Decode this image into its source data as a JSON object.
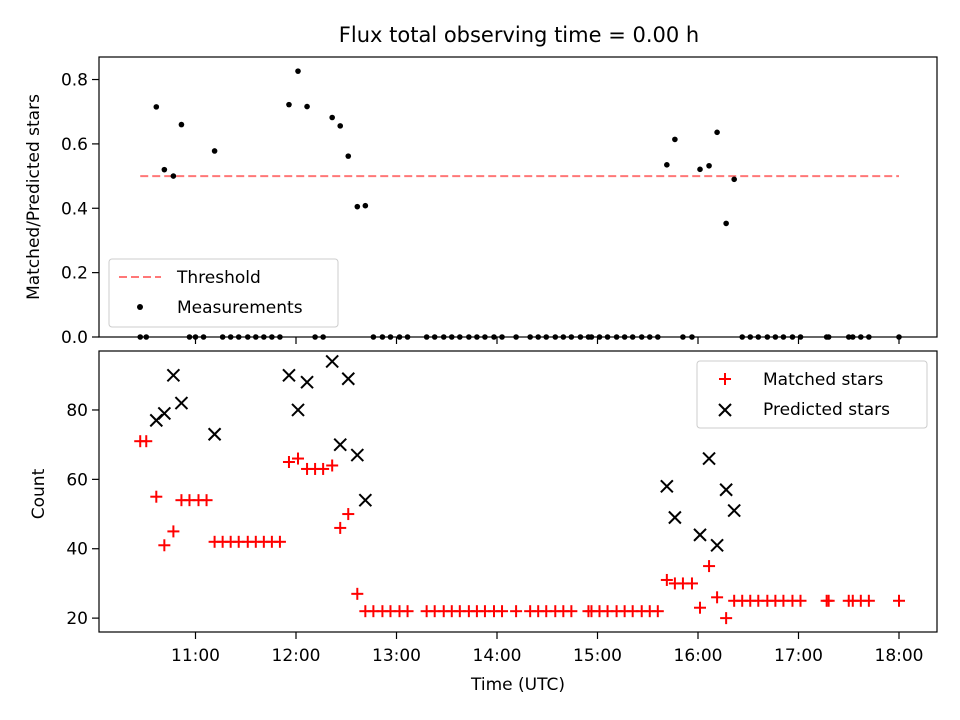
{
  "chart_data": [
    {
      "type": "scatter",
      "title": "Flux total observing time = 0.00 h",
      "xlabel": "",
      "ylabel": "Matched/Predicted stars",
      "ylim": [
        0,
        0.87
      ],
      "yticks": [
        0.0,
        0.2,
        0.4,
        0.6,
        0.8
      ],
      "ytick_labels": [
        "0.0",
        "0.2",
        "0.4",
        "0.6",
        "0.8"
      ],
      "xticks": [
        11.0,
        12.0,
        13.0,
        14.0,
        15.0,
        16.0,
        17.0,
        18.0
      ],
      "legend_position": "lower-left",
      "threshold": {
        "name": "Threshold",
        "y": 0.5,
        "x": [
          10.45,
          18.0
        ],
        "color": "#ff7777",
        "style": "dashed"
      },
      "series": [
        {
          "name": "Measurements",
          "color": "#000000",
          "marker": "dot",
          "points": [
            [
              10.45,
              0
            ],
            [
              10.51,
              0
            ],
            [
              10.61,
              0.715
            ],
            [
              10.69,
              0.52
            ],
            [
              10.78,
              0.5
            ],
            [
              10.86,
              0.66
            ],
            [
              10.94,
              0
            ],
            [
              11.0,
              0
            ],
            [
              11.08,
              0
            ],
            [
              11.19,
              0.578
            ],
            [
              11.27,
              0
            ],
            [
              11.35,
              0
            ],
            [
              11.43,
              0
            ],
            [
              11.52,
              0
            ],
            [
              11.6,
              0
            ],
            [
              11.68,
              0
            ],
            [
              11.76,
              0
            ],
            [
              11.84,
              0
            ],
            [
              11.93,
              0.722
            ],
            [
              12.02,
              0.826
            ],
            [
              12.11,
              0.716
            ],
            [
              12.19,
              0
            ],
            [
              12.27,
              0
            ],
            [
              12.36,
              0.682
            ],
            [
              12.44,
              0.656
            ],
            [
              12.52,
              0.562
            ],
            [
              12.61,
              0.405
            ],
            [
              12.69,
              0.408
            ],
            [
              12.77,
              0
            ],
            [
              12.86,
              0
            ],
            [
              12.94,
              0
            ],
            [
              13.03,
              0
            ],
            [
              13.11,
              0
            ],
            [
              13.3,
              0
            ],
            [
              13.38,
              0
            ],
            [
              13.47,
              0
            ],
            [
              13.55,
              0
            ],
            [
              13.63,
              0
            ],
            [
              13.72,
              0
            ],
            [
              13.8,
              0
            ],
            [
              13.88,
              0
            ],
            [
              13.97,
              0
            ],
            [
              14.05,
              0
            ],
            [
              14.19,
              0
            ],
            [
              14.33,
              0
            ],
            [
              14.41,
              0
            ],
            [
              14.49,
              0
            ],
            [
              14.58,
              0
            ],
            [
              14.66,
              0
            ],
            [
              14.74,
              0
            ],
            [
              14.83,
              0
            ],
            [
              14.91,
              0
            ],
            [
              14.94,
              0
            ],
            [
              15.02,
              0
            ],
            [
              15.1,
              0
            ],
            [
              15.19,
              0
            ],
            [
              15.27,
              0
            ],
            [
              15.35,
              0
            ],
            [
              15.44,
              0
            ],
            [
              15.52,
              0
            ],
            [
              15.6,
              0
            ],
            [
              15.69,
              0.535
            ],
            [
              15.77,
              0.614
            ],
            [
              15.85,
              0
            ],
            [
              15.94,
              0
            ],
            [
              16.02,
              0.521
            ],
            [
              16.11,
              0.532
            ],
            [
              16.19,
              0.636
            ],
            [
              16.28,
              0.353
            ],
            [
              16.36,
              0.49
            ],
            [
              16.44,
              0
            ],
            [
              16.52,
              0
            ],
            [
              16.6,
              0
            ],
            [
              16.69,
              0
            ],
            [
              16.77,
              0
            ],
            [
              16.85,
              0
            ],
            [
              16.94,
              0
            ],
            [
              17.02,
              0
            ],
            [
              17.28,
              0
            ],
            [
              17.3,
              0
            ],
            [
              17.5,
              0
            ],
            [
              17.54,
              0
            ],
            [
              17.62,
              0
            ],
            [
              17.7,
              0
            ],
            [
              18.0,
              0
            ]
          ]
        }
      ]
    },
    {
      "type": "scatter",
      "title": "",
      "xlabel": "Time (UTC)",
      "ylabel": "Count",
      "ylim": [
        16,
        97
      ],
      "yticks": [
        20,
        40,
        60,
        80
      ],
      "ytick_labels": [
        "20",
        "40",
        "60",
        "80"
      ],
      "xticks": [
        11.0,
        12.0,
        13.0,
        14.0,
        15.0,
        16.0,
        17.0,
        18.0
      ],
      "xtick_labels": [
        "11:00",
        "12:00",
        "13:00",
        "14:00",
        "15:00",
        "16:00",
        "17:00",
        "18:00"
      ],
      "legend_position": "upper-right",
      "series": [
        {
          "name": "Matched stars",
          "color": "#ff0000",
          "marker": "plus",
          "points": [
            [
              10.45,
              71
            ],
            [
              10.51,
              71
            ],
            [
              10.61,
              55
            ],
            [
              10.69,
              41
            ],
            [
              10.78,
              45
            ],
            [
              10.86,
              54
            ],
            [
              10.94,
              54
            ],
            [
              11.03,
              54
            ],
            [
              11.11,
              54
            ],
            [
              11.19,
              42
            ],
            [
              11.27,
              42
            ],
            [
              11.35,
              42
            ],
            [
              11.43,
              42
            ],
            [
              11.52,
              42
            ],
            [
              11.6,
              42
            ],
            [
              11.68,
              42
            ],
            [
              11.76,
              42
            ],
            [
              11.84,
              42
            ],
            [
              11.93,
              65
            ],
            [
              12.02,
              66
            ],
            [
              12.11,
              63
            ],
            [
              12.19,
              63
            ],
            [
              12.27,
              63
            ],
            [
              12.36,
              64
            ],
            [
              12.44,
              46
            ],
            [
              12.52,
              50
            ],
            [
              12.61,
              27
            ],
            [
              12.69,
              22
            ],
            [
              12.77,
              22
            ],
            [
              12.86,
              22
            ],
            [
              12.94,
              22
            ],
            [
              13.03,
              22
            ],
            [
              13.11,
              22
            ],
            [
              13.3,
              22
            ],
            [
              13.38,
              22
            ],
            [
              13.47,
              22
            ],
            [
              13.55,
              22
            ],
            [
              13.63,
              22
            ],
            [
              13.72,
              22
            ],
            [
              13.8,
              22
            ],
            [
              13.88,
              22
            ],
            [
              13.97,
              22
            ],
            [
              14.05,
              22
            ],
            [
              14.19,
              22
            ],
            [
              14.33,
              22
            ],
            [
              14.41,
              22
            ],
            [
              14.49,
              22
            ],
            [
              14.58,
              22
            ],
            [
              14.66,
              22
            ],
            [
              14.74,
              22
            ],
            [
              14.91,
              22
            ],
            [
              14.94,
              22
            ],
            [
              15.02,
              22
            ],
            [
              15.1,
              22
            ],
            [
              15.19,
              22
            ],
            [
              15.27,
              22
            ],
            [
              15.35,
              22
            ],
            [
              15.44,
              22
            ],
            [
              15.52,
              22
            ],
            [
              15.6,
              22
            ],
            [
              15.69,
              31
            ],
            [
              15.77,
              30
            ],
            [
              15.85,
              30
            ],
            [
              15.94,
              30
            ],
            [
              16.02,
              23
            ],
            [
              16.11,
              35
            ],
            [
              16.19,
              26
            ],
            [
              16.28,
              20
            ],
            [
              16.36,
              25
            ],
            [
              16.44,
              25
            ],
            [
              16.52,
              25
            ],
            [
              16.6,
              25
            ],
            [
              16.69,
              25
            ],
            [
              16.77,
              25
            ],
            [
              16.85,
              25
            ],
            [
              16.94,
              25
            ],
            [
              17.02,
              25
            ],
            [
              17.28,
              25
            ],
            [
              17.3,
              25
            ],
            [
              17.5,
              25
            ],
            [
              17.54,
              25
            ],
            [
              17.62,
              25
            ],
            [
              17.7,
              25
            ],
            [
              18.0,
              25
            ]
          ]
        },
        {
          "name": "Predicted stars",
          "color": "#000000",
          "marker": "x",
          "points": [
            [
              10.61,
              77
            ],
            [
              10.69,
              79
            ],
            [
              10.78,
              90
            ],
            [
              10.86,
              82
            ],
            [
              11.19,
              73
            ],
            [
              11.93,
              90
            ],
            [
              12.02,
              80
            ],
            [
              12.11,
              88
            ],
            [
              12.36,
              94
            ],
            [
              12.44,
              70
            ],
            [
              12.52,
              89
            ],
            [
              12.61,
              67
            ],
            [
              12.69,
              54
            ],
            [
              15.69,
              58
            ],
            [
              15.77,
              49
            ],
            [
              16.02,
              44
            ],
            [
              16.11,
              66
            ],
            [
              16.19,
              41
            ],
            [
              16.28,
              57
            ],
            [
              16.36,
              51
            ]
          ]
        }
      ]
    }
  ]
}
